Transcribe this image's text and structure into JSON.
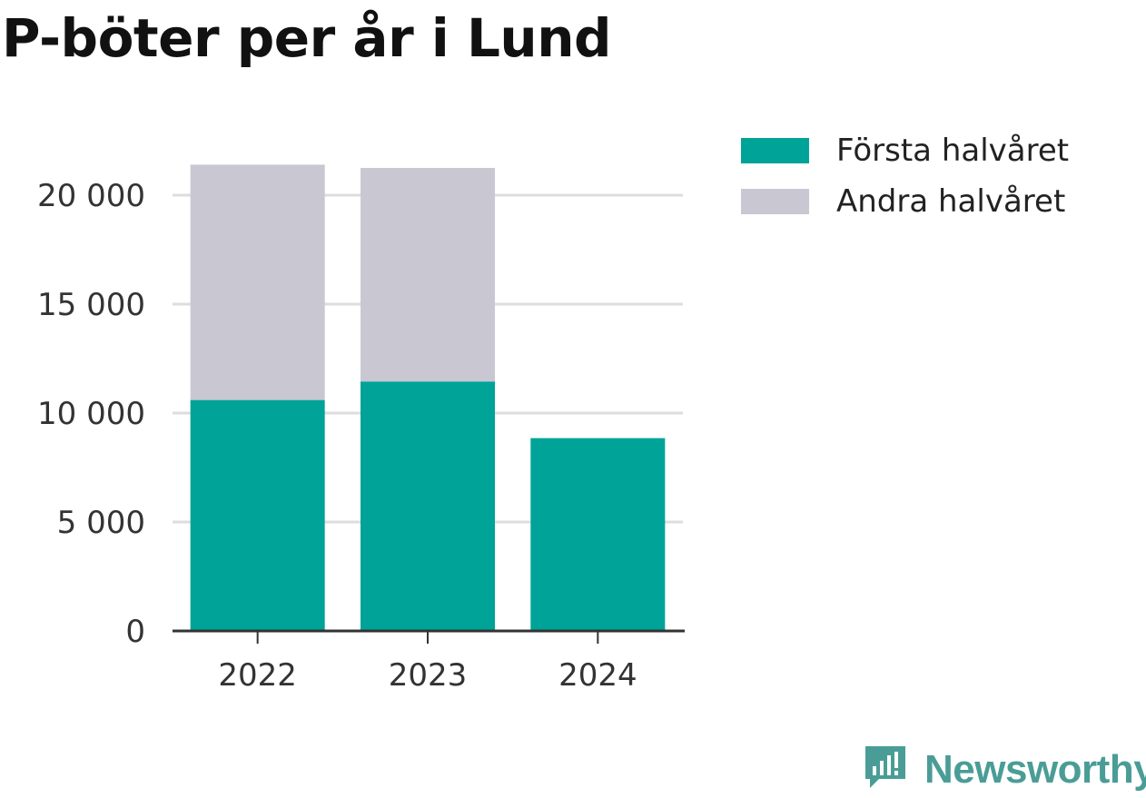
{
  "title": "P-böter per år i Lund",
  "brand": {
    "name": "Newsworthy",
    "color": "#4a9d96",
    "icon": "newsworthy-logo-icon"
  },
  "chart_data": {
    "type": "bar",
    "stacked": true,
    "title": "P-böter per år i Lund",
    "xlabel": "",
    "ylabel": "",
    "categories": [
      "2022",
      "2023",
      "2024"
    ],
    "series": [
      {
        "name": "Första halvåret",
        "color": "#00a398",
        "values": [
          10600,
          11450,
          8850
        ]
      },
      {
        "name": "Andra halvåret",
        "color": "#c8c7d2",
        "values": [
          10800,
          9800,
          0
        ]
      }
    ],
    "ylim": [
      0,
      22000
    ],
    "yticks": [
      0,
      5000,
      10000,
      15000,
      20000
    ],
    "ytick_labels": [
      "0",
      "5 000",
      "10 000",
      "15 000",
      "20 000"
    ],
    "grid": true,
    "legend_position": "right"
  }
}
